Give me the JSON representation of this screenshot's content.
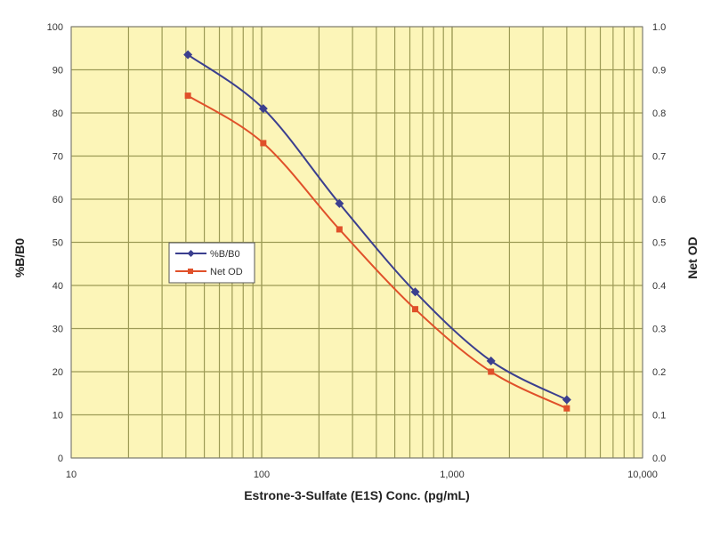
{
  "chart_data": {
    "type": "line",
    "xlabel": "Estrone-3-Sulfate (E1S) Conc. (pg/mL)",
    "ylabel": "%B/B0",
    "y2label": "Net OD",
    "xscale": "log",
    "xlim": [
      10,
      10000
    ],
    "ylim": [
      0,
      100
    ],
    "y2lim": [
      0,
      1.0
    ],
    "xticks": [
      "10",
      "100",
      "1,000",
      "10,000"
    ],
    "yticks": [
      "0",
      "10",
      "20",
      "30",
      "40",
      "50",
      "60",
      "70",
      "80",
      "90",
      "100"
    ],
    "y2ticks": [
      "0.0",
      "0.1",
      "0.2",
      "0.3",
      "0.4",
      "0.5",
      "0.6",
      "0.7",
      "0.8",
      "0.9",
      "1.0"
    ],
    "grid": true,
    "legend_position": "center-left",
    "background": "#fcf5b8",
    "x": [
      41,
      102,
      256,
      640,
      1600,
      4000
    ],
    "series": [
      {
        "name": "%B/B0",
        "axis": "left",
        "color": "#3b3f8f",
        "values": [
          93.5,
          81,
          59,
          38.5,
          22.5,
          13.5
        ]
      },
      {
        "name": "Net OD",
        "axis": "right",
        "color": "#e0502a",
        "values": [
          0.84,
          0.73,
          0.53,
          0.345,
          0.2,
          0.115
        ]
      }
    ]
  }
}
